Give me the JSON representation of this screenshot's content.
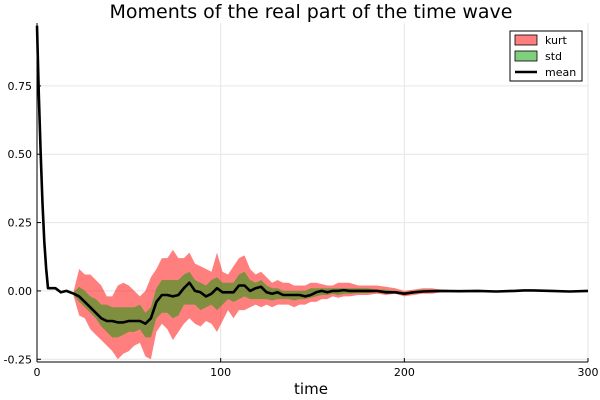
{
  "chart_data": {
    "type": "area",
    "title": "Moments of the real part of the time wave",
    "xlabel": "time",
    "ylabel": "",
    "xlim": [
      0,
      300
    ],
    "ylim": [
      -0.26,
      0.98
    ],
    "xticks": [
      0,
      100,
      200,
      300
    ],
    "xtick_labels": [
      "0",
      "100",
      "200",
      "300"
    ],
    "yticks": [
      -0.25,
      0,
      0.25,
      0.5,
      0.75
    ],
    "ytick_labels": [
      "-0.25",
      "0.00",
      "0.25",
      "0.50",
      "0.75"
    ],
    "grid": true,
    "legend_position": "top-right",
    "legend": [
      "kurt",
      "std",
      "mean"
    ],
    "series": [
      {
        "name": "kurt",
        "kind": "band",
        "color": "#ff0000",
        "opacity": 0.5,
        "x": [
          20,
          23,
          26,
          29,
          32,
          35,
          38,
          41,
          44,
          47,
          50,
          53,
          56,
          59,
          62,
          65,
          68,
          71,
          74,
          77,
          80,
          83,
          86,
          89,
          92,
          95,
          98,
          101,
          104,
          107,
          110,
          113,
          116,
          119,
          122,
          125,
          128,
          131,
          134,
          137,
          140,
          143,
          146,
          149,
          152,
          155,
          158,
          161,
          164,
          167,
          170,
          175,
          180,
          185,
          190,
          195,
          200,
          205,
          210,
          215,
          220,
          230,
          240,
          250
        ],
        "upper": [
          0.0,
          0.08,
          0.06,
          0.06,
          0.04,
          0.02,
          -0.02,
          -0.02,
          0.02,
          0.03,
          0.02,
          0.0,
          -0.02,
          0.0,
          0.05,
          0.08,
          0.12,
          0.12,
          0.15,
          0.12,
          0.12,
          0.14,
          0.1,
          0.09,
          0.08,
          0.07,
          0.14,
          0.07,
          0.06,
          0.09,
          0.12,
          0.13,
          0.08,
          0.06,
          0.07,
          0.05,
          0.03,
          0.04,
          0.03,
          0.03,
          0.02,
          0.02,
          0.02,
          0.03,
          0.03,
          0.025,
          0.02,
          0.02,
          0.03,
          0.03,
          0.03,
          0.02,
          0.02,
          0.02,
          0.015,
          0.01,
          0.0,
          0.005,
          0.01,
          0.01,
          0.005,
          0.002,
          0.002,
          0.0
        ],
        "lower": [
          -0.02,
          -0.09,
          -0.1,
          -0.14,
          -0.16,
          -0.18,
          -0.2,
          -0.22,
          -0.25,
          -0.23,
          -0.22,
          -0.2,
          -0.19,
          -0.24,
          -0.25,
          -0.15,
          -0.12,
          -0.14,
          -0.18,
          -0.15,
          -0.12,
          -0.1,
          -0.12,
          -0.13,
          -0.11,
          -0.12,
          -0.15,
          -0.11,
          -0.07,
          -0.1,
          -0.07,
          -0.07,
          -0.06,
          -0.05,
          -0.06,
          -0.05,
          -0.06,
          -0.05,
          -0.05,
          -0.05,
          -0.06,
          -0.05,
          -0.05,
          -0.04,
          -0.04,
          -0.03,
          -0.03,
          -0.02,
          -0.025,
          -0.02,
          -0.02,
          -0.015,
          -0.015,
          -0.01,
          -0.015,
          -0.01,
          -0.02,
          -0.015,
          -0.01,
          -0.01,
          -0.005,
          -0.005,
          -0.005,
          0.0
        ]
      },
      {
        "name": "std",
        "kind": "band",
        "color": "#00a000",
        "opacity": 0.5,
        "x": [
          20,
          23,
          26,
          29,
          32,
          35,
          38,
          41,
          44,
          47,
          50,
          53,
          56,
          59,
          62,
          65,
          68,
          71,
          74,
          77,
          80,
          83,
          86,
          89,
          92,
          95,
          98,
          101,
          104,
          107,
          110,
          113,
          116,
          119,
          122,
          125,
          128,
          131,
          134,
          137,
          140,
          143,
          146,
          149,
          152,
          155,
          158,
          161,
          164,
          167,
          170,
          175,
          180,
          185,
          190,
          195,
          200,
          205,
          210,
          215,
          220,
          230,
          240,
          250
        ],
        "upper": [
          -0.005,
          0.015,
          0.0,
          -0.02,
          -0.03,
          -0.05,
          -0.05,
          -0.06,
          -0.06,
          -0.06,
          -0.06,
          -0.06,
          -0.05,
          -0.08,
          -0.06,
          0.01,
          0.04,
          0.04,
          0.04,
          0.04,
          0.06,
          0.07,
          0.04,
          0.03,
          0.02,
          0.04,
          0.05,
          0.03,
          0.03,
          0.03,
          0.06,
          0.07,
          0.04,
          0.03,
          0.04,
          0.02,
          0.01,
          0.01,
          0.0,
          0.0,
          0.0,
          0.0,
          0.0,
          0.01,
          0.01,
          0.01,
          0.01,
          0.01,
          0.01,
          0.01,
          0.01,
          0.01,
          0.01,
          0.005,
          0.005,
          0.0,
          -0.005,
          0.0,
          0.005,
          0.005,
          0.003,
          0.001,
          0.001,
          0.0
        ],
        "lower": [
          -0.015,
          -0.04,
          -0.06,
          -0.08,
          -0.1,
          -0.13,
          -0.15,
          -0.17,
          -0.17,
          -0.16,
          -0.15,
          -0.15,
          -0.14,
          -0.17,
          -0.17,
          -0.1,
          -0.08,
          -0.08,
          -0.1,
          -0.09,
          -0.05,
          -0.05,
          -0.05,
          -0.07,
          -0.06,
          -0.05,
          -0.07,
          -0.05,
          -0.03,
          -0.04,
          -0.03,
          -0.02,
          -0.03,
          -0.03,
          -0.03,
          -0.03,
          -0.035,
          -0.03,
          -0.03,
          -0.03,
          -0.035,
          -0.03,
          -0.03,
          -0.025,
          -0.02,
          -0.015,
          -0.015,
          -0.01,
          -0.015,
          -0.01,
          -0.01,
          -0.008,
          -0.008,
          -0.005,
          -0.01,
          -0.008,
          -0.014,
          -0.01,
          -0.006,
          -0.005,
          -0.003,
          -0.003,
          -0.002,
          0.0
        ]
      },
      {
        "name": "mean",
        "kind": "line",
        "color": "#000000",
        "x": [
          0,
          1,
          2,
          3,
          4,
          5,
          6,
          10,
          13,
          16,
          20,
          23,
          26,
          29,
          32,
          35,
          38,
          41,
          44,
          47,
          50,
          53,
          56,
          59,
          62,
          65,
          68,
          71,
          74,
          77,
          80,
          83,
          86,
          89,
          92,
          95,
          98,
          101,
          104,
          107,
          110,
          113,
          116,
          119,
          122,
          125,
          128,
          131,
          134,
          137,
          140,
          143,
          146,
          149,
          152,
          155,
          158,
          161,
          164,
          167,
          170,
          175,
          180,
          185,
          190,
          195,
          200,
          205,
          210,
          215,
          220,
          230,
          240,
          250,
          260,
          265,
          270,
          280,
          290,
          300
        ],
        "y": [
          0.97,
          0.72,
          0.5,
          0.32,
          0.18,
          0.08,
          0.01,
          0.01,
          -0.005,
          0.0,
          -0.01,
          -0.02,
          -0.04,
          -0.06,
          -0.08,
          -0.1,
          -0.11,
          -0.11,
          -0.115,
          -0.115,
          -0.11,
          -0.11,
          -0.11,
          -0.12,
          -0.1,
          -0.04,
          -0.015,
          -0.015,
          -0.02,
          -0.015,
          0.01,
          0.03,
          0.0,
          -0.005,
          -0.02,
          -0.01,
          0.01,
          -0.005,
          -0.005,
          -0.005,
          0.02,
          0.02,
          0.0,
          0.01,
          0.015,
          -0.005,
          -0.01,
          -0.005,
          -0.015,
          -0.015,
          -0.015,
          -0.015,
          -0.02,
          -0.015,
          -0.005,
          0.0,
          -0.005,
          0.0,
          0.0,
          0.003,
          0.0,
          0.0,
          0.0,
          0.0,
          -0.005,
          -0.005,
          -0.01,
          -0.005,
          -0.002,
          -0.001,
          0.0,
          -0.001,
          0.0,
          -0.002,
          0.0,
          0.002,
          0.002,
          0.0,
          -0.002,
          0.0
        ]
      }
    ]
  }
}
